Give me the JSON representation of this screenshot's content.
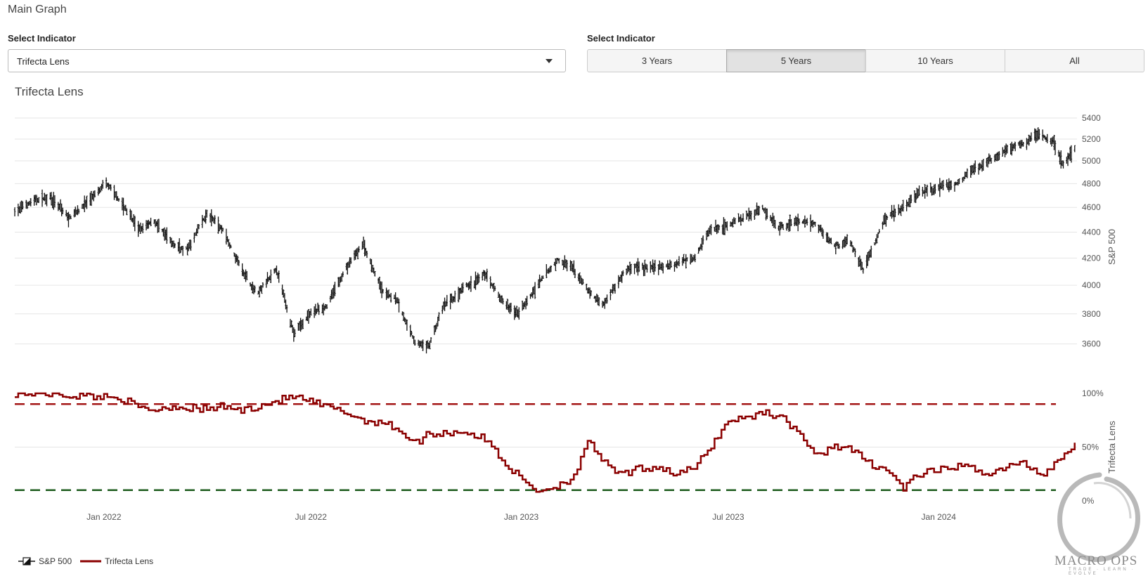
{
  "page": {
    "title": "Main Graph"
  },
  "controls": {
    "indicator_label": "Select Indicator",
    "indicator_value": "Trifecta Lens",
    "range_label": "Select Indicator",
    "ranges": [
      {
        "label": "3 Years",
        "active": false
      },
      {
        "label": "5 Years",
        "active": true
      },
      {
        "label": "10 Years",
        "active": false
      },
      {
        "label": "All",
        "active": false
      }
    ]
  },
  "chart_title": "Trifecta Lens",
  "logo": {
    "text": "MACRO OPS",
    "tagline": "TRADE · LEARN · EVOLVE"
  },
  "colors": {
    "price": "#111111",
    "indicator": "#8b0000",
    "upper_line": "#a31515",
    "lower_line": "#1e5c1e",
    "grid": "#e6e6e6"
  },
  "chart_data": {
    "type": "line",
    "x_ticks": [
      "Jan 2022",
      "Jul 2022",
      "Jan 2023",
      "Jul 2023",
      "Jan 2024"
    ],
    "panels": [
      {
        "name": "S&P 500",
        "type": "ohlc",
        "axis_title": "S&P 500",
        "y_ticks": [
          3600,
          3800,
          4000,
          4200,
          4400,
          4600,
          4800,
          5000,
          5200,
          5400
        ],
        "ylim": [
          3400,
          5400
        ],
        "points": [
          [
            "2021-10-15",
            4570
          ],
          [
            "2021-11-01",
            4650
          ],
          [
            "2021-11-15",
            4690
          ],
          [
            "2021-12-01",
            4510
          ],
          [
            "2021-12-15",
            4630
          ],
          [
            "2022-01-03",
            4790
          ],
          [
            "2022-01-15",
            4650
          ],
          [
            "2022-02-01",
            4420
          ],
          [
            "2022-02-15",
            4480
          ],
          [
            "2022-03-01",
            4300
          ],
          [
            "2022-03-15",
            4260
          ],
          [
            "2022-04-01",
            4540
          ],
          [
            "2022-04-15",
            4420
          ],
          [
            "2022-05-01",
            4130
          ],
          [
            "2022-05-15",
            3930
          ],
          [
            "2022-06-01",
            4100
          ],
          [
            "2022-06-16",
            3670
          ],
          [
            "2022-07-01",
            3800
          ],
          [
            "2022-07-15",
            3860
          ],
          [
            "2022-08-01",
            4120
          ],
          [
            "2022-08-16",
            4300
          ],
          [
            "2022-09-01",
            3970
          ],
          [
            "2022-09-15",
            3890
          ],
          [
            "2022-09-30",
            3600
          ],
          [
            "2022-10-12",
            3580
          ],
          [
            "2022-10-25",
            3850
          ],
          [
            "2022-11-10",
            3950
          ],
          [
            "2022-12-01",
            4070
          ],
          [
            "2022-12-15",
            3890
          ],
          [
            "2022-12-28",
            3790
          ],
          [
            "2023-01-15",
            3990
          ],
          [
            "2023-02-02",
            4180
          ],
          [
            "2023-02-15",
            4120
          ],
          [
            "2023-03-01",
            3950
          ],
          [
            "2023-03-13",
            3860
          ],
          [
            "2023-04-01",
            4110
          ],
          [
            "2023-04-15",
            4140
          ],
          [
            "2023-05-01",
            4120
          ],
          [
            "2023-05-15",
            4150
          ],
          [
            "2023-06-01",
            4220
          ],
          [
            "2023-06-15",
            4420
          ],
          [
            "2023-07-01",
            4450
          ],
          [
            "2023-07-15",
            4510
          ],
          [
            "2023-07-31",
            4590
          ],
          [
            "2023-08-15",
            4440
          ],
          [
            "2023-09-01",
            4500
          ],
          [
            "2023-09-15",
            4460
          ],
          [
            "2023-10-01",
            4300
          ],
          [
            "2023-10-15",
            4330
          ],
          [
            "2023-10-27",
            4120
          ],
          [
            "2023-11-15",
            4500
          ],
          [
            "2023-12-01",
            4590
          ],
          [
            "2023-12-15",
            4720
          ],
          [
            "2024-01-01",
            4760
          ],
          [
            "2024-01-15",
            4780
          ],
          [
            "2024-02-01",
            4920
          ],
          [
            "2024-02-15",
            5000
          ],
          [
            "2024-03-01",
            5100
          ],
          [
            "2024-03-15",
            5160
          ],
          [
            "2024-03-28",
            5250
          ],
          [
            "2024-04-10",
            5190
          ],
          [
            "2024-04-19",
            4970
          ],
          [
            "2024-04-29",
            5110
          ]
        ]
      },
      {
        "name": "Trifecta Lens",
        "type": "step",
        "axis_title": "Trifecta Lens",
        "y_ticks_labels": [
          "0%",
          "50%",
          "100%"
        ],
        "y_ticks": [
          0,
          50,
          100
        ],
        "ylim": [
          0,
          100
        ],
        "upper_threshold": 90,
        "lower_threshold": 10,
        "points": [
          [
            "2021-10-15",
            100
          ],
          [
            "2021-11-15",
            100
          ],
          [
            "2021-12-01",
            98
          ],
          [
            "2022-01-01",
            97
          ],
          [
            "2022-01-15",
            96
          ],
          [
            "2022-02-01",
            86
          ],
          [
            "2022-02-15",
            85
          ],
          [
            "2022-03-01",
            88
          ],
          [
            "2022-04-01",
            85
          ],
          [
            "2022-04-15",
            88
          ],
          [
            "2022-05-01",
            84
          ],
          [
            "2022-05-15",
            88
          ],
          [
            "2022-06-01",
            93
          ],
          [
            "2022-06-15",
            97
          ],
          [
            "2022-07-01",
            92
          ],
          [
            "2022-07-15",
            87
          ],
          [
            "2022-08-01",
            82
          ],
          [
            "2022-08-15",
            75
          ],
          [
            "2022-09-01",
            73
          ],
          [
            "2022-09-15",
            67
          ],
          [
            "2022-09-30",
            53
          ],
          [
            "2022-10-10",
            62
          ],
          [
            "2022-10-25",
            63
          ],
          [
            "2022-11-10",
            65
          ],
          [
            "2022-12-01",
            57
          ],
          [
            "2022-12-20",
            32
          ],
          [
            "2023-01-01",
            20
          ],
          [
            "2023-01-15",
            9
          ],
          [
            "2023-02-01",
            14
          ],
          [
            "2023-02-15",
            22
          ],
          [
            "2023-03-01",
            55
          ],
          [
            "2023-03-20",
            28
          ],
          [
            "2023-04-01",
            25
          ],
          [
            "2023-04-15",
            30
          ],
          [
            "2023-05-01",
            32
          ],
          [
            "2023-05-15",
            25
          ],
          [
            "2023-06-01",
            30
          ],
          [
            "2023-06-15",
            50
          ],
          [
            "2023-07-01",
            75
          ],
          [
            "2023-07-15",
            77
          ],
          [
            "2023-08-01",
            83
          ],
          [
            "2023-08-15",
            78
          ],
          [
            "2023-09-01",
            64
          ],
          [
            "2023-09-15",
            40
          ],
          [
            "2023-10-01",
            52
          ],
          [
            "2023-10-15",
            48
          ],
          [
            "2023-11-01",
            35
          ],
          [
            "2023-11-15",
            30
          ],
          [
            "2023-12-01",
            12
          ],
          [
            "2023-12-15",
            25
          ],
          [
            "2024-01-01",
            28
          ],
          [
            "2024-01-15",
            32
          ],
          [
            "2024-02-01",
            30
          ],
          [
            "2024-02-15",
            25
          ],
          [
            "2024-03-01",
            32
          ],
          [
            "2024-03-15",
            35
          ],
          [
            "2024-04-01",
            24
          ],
          [
            "2024-04-15",
            40
          ],
          [
            "2024-04-29",
            51
          ]
        ]
      }
    ],
    "legend": [
      "S&P 500",
      "Trifecta Lens"
    ],
    "legend_position": "bottom-left",
    "grid": true
  }
}
